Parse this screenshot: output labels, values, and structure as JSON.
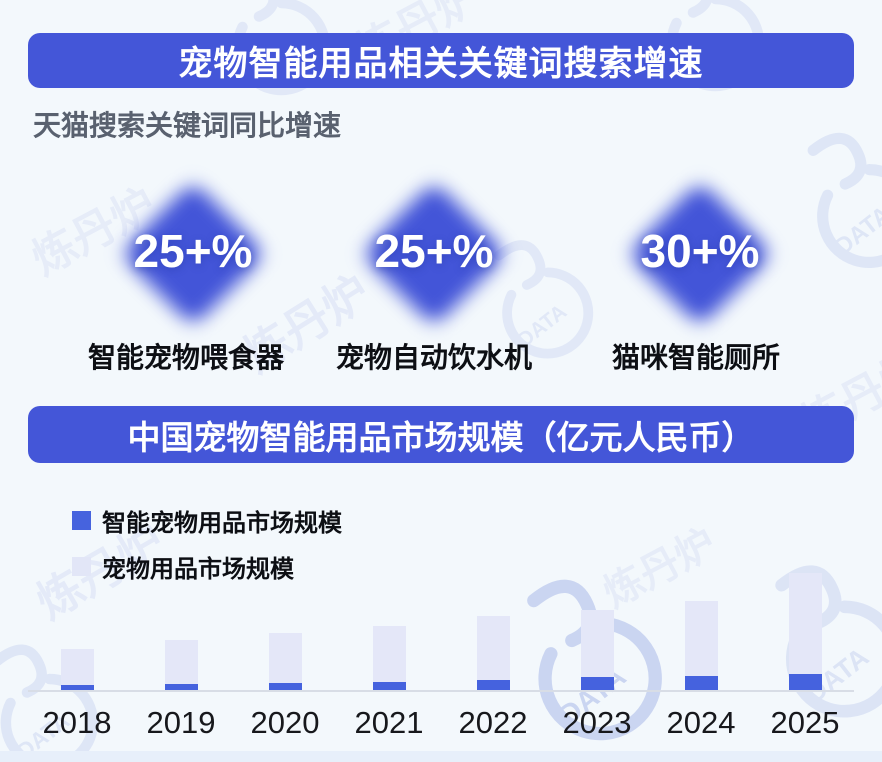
{
  "canvas": {
    "background": "#f3f8fc",
    "accent_blue": "#4456d8"
  },
  "section_search": {
    "banner_title": "宠物智能用品相关关键词搜索增速",
    "subtitle": "天猫搜索关键词同比增速",
    "stats": [
      {
        "value": "25+%",
        "label": "智能宠物喂食器"
      },
      {
        "value": "25+%",
        "label": "宠物自动饮水机"
      },
      {
        "value": "30+%",
        "label": "猫咪智能厕所"
      }
    ]
  },
  "section_market": {
    "banner_title": "中国宠物智能用品市场规模（亿元人民币）",
    "legend": [
      {
        "label": "智能宠物用品市场规模",
        "color": "#4663de"
      },
      {
        "label": "宠物用品市场规模",
        "color": "#e2e6f7"
      }
    ]
  },
  "chart_data": {
    "type": "bar",
    "stacked": true,
    "title": "中国宠物智能用品市场规模（亿元人民币）",
    "units": "亿元人民币",
    "categories": [
      "2018",
      "2019",
      "2020",
      "2021",
      "2022",
      "2023",
      "2024",
      "2025"
    ],
    "series": [
      {
        "name": "智能宠物用品市场规模",
        "color": "#4562de",
        "values": [
          5,
          6,
          7,
          8,
          10,
          13,
          14,
          16
        ]
      },
      {
        "name": "宠物用品市场规模",
        "color": "#e4e7f8",
        "values": [
          36,
          44,
          50,
          56,
          64,
          67,
          75,
          101
        ]
      }
    ],
    "totals": [
      41,
      50,
      57,
      64,
      74,
      80,
      89,
      117
    ],
    "xlabel": "",
    "ylabel": "",
    "axis_values_shown": false,
    "grid": false,
    "legend_position": "top-left"
  },
  "watermark": {
    "brand_text": "炼丹炉",
    "logo_text": "DATA"
  }
}
